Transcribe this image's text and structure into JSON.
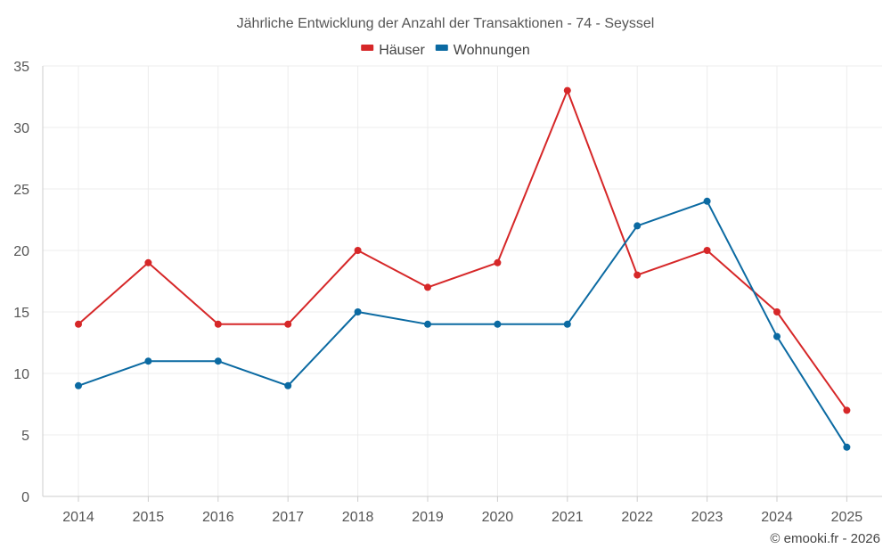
{
  "chart_data": {
    "type": "line",
    "title": "Jährliche Entwicklung der Anzahl der Transaktionen - 74 - Seyssel",
    "categories": [
      "2014",
      "2015",
      "2016",
      "2017",
      "2018",
      "2019",
      "2020",
      "2021",
      "2022",
      "2023",
      "2024",
      "2025"
    ],
    "series": [
      {
        "name": "Häuser",
        "color": "#d62728",
        "values": [
          14,
          19,
          14,
          14,
          20,
          17,
          19,
          33,
          18,
          20,
          15,
          7
        ]
      },
      {
        "name": "Wohnungen",
        "color": "#0b6aa2",
        "values": [
          9,
          11,
          11,
          9,
          15,
          14,
          14,
          14,
          22,
          24,
          13,
          4
        ]
      }
    ],
    "ylim": [
      0,
      35
    ],
    "yticks": [
      0,
      5,
      10,
      15,
      20,
      25,
      30,
      35
    ],
    "xlabel": "",
    "ylabel": "",
    "grid": true,
    "legend": "top-center"
  },
  "credit": "© emooki.fr - 2026"
}
